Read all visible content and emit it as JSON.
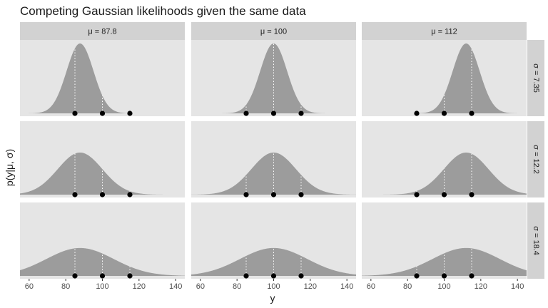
{
  "chart_data": {
    "type": "area",
    "title": "Competing Gaussian likelihoods given the same data",
    "xlabel": "y",
    "ylabel": "p(y|μ, σ)",
    "xlim": [
      55,
      145
    ],
    "x_ticks": [
      60,
      80,
      100,
      120,
      140
    ],
    "grid": false,
    "facet_cols": {
      "name": "μ",
      "values": [
        87.8,
        100,
        112
      ],
      "labels": [
        "μ = 87.8",
        "μ = 100",
        "μ = 112"
      ]
    },
    "facet_rows": {
      "name": "σ",
      "values": [
        7.35,
        12.2,
        18.4
      ],
      "labels": [
        "σ = 7.35",
        "σ = 12.2",
        "σ = 18.4"
      ]
    },
    "observed_y": [
      85,
      100,
      115
    ],
    "fill_color": "#9c9c9c",
    "point_color": "#000000",
    "panel_background": "#e5e5e5",
    "strip_background": "#d2d2d2"
  }
}
